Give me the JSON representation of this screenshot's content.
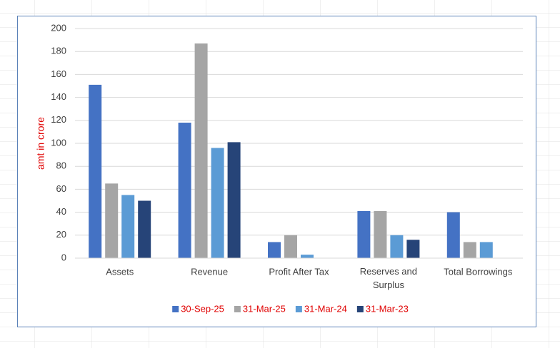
{
  "chart_data": {
    "type": "bar",
    "y_axis_label": "amt in crore",
    "categories": [
      "Assets",
      "Revenue",
      "Profit After Tax",
      "Reserves and Surplus",
      "Total Borrowings"
    ],
    "series": [
      {
        "name": "30-Sep-25",
        "color": "#4472c4",
        "values": [
          151,
          118,
          14,
          41,
          40
        ]
      },
      {
        "name": "31-Mar-25",
        "color": "#a5a5a5",
        "values": [
          65,
          187,
          20,
          41,
          14
        ]
      },
      {
        "name": "31-Mar-24",
        "color": "#5b9bd5",
        "values": [
          55,
          96,
          3,
          20,
          14
        ]
      },
      {
        "name": "31-Mar-23",
        "color": "#264478",
        "values": [
          50,
          101,
          null,
          16,
          null
        ]
      }
    ],
    "ylim": [
      0,
      200
    ],
    "yticks": [
      0,
      20,
      40,
      60,
      80,
      100,
      120,
      140,
      160,
      180,
      200
    ],
    "grid": true,
    "legend": "bottom"
  }
}
